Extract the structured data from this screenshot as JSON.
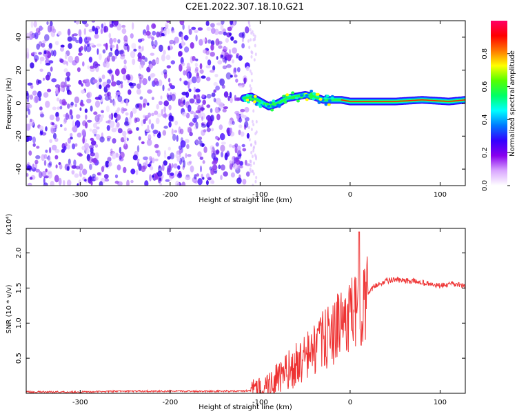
{
  "title": "C2E1.2022.307.18.10.G21",
  "chart_data": [
    {
      "type": "heatmap",
      "xlabel": "Height of straight line (km)",
      "ylabel": "Frequency (Hz)",
      "xlim": [
        -360,
        128
      ],
      "ylim": [
        -50,
        50
      ],
      "x_ticks": [
        -300,
        -200,
        -100,
        0,
        100
      ],
      "y_ticks": [
        -40,
        -20,
        0,
        20,
        40
      ],
      "noise_region_x": [
        -360,
        -113
      ],
      "signal_trace": [
        {
          "x": -118,
          "y": 3
        },
        {
          "x": -110,
          "y": 4
        },
        {
          "x": -100,
          "y": 1
        },
        {
          "x": -90,
          "y": -2
        },
        {
          "x": -80,
          "y": 0
        },
        {
          "x": -70,
          "y": 3
        },
        {
          "x": -60,
          "y": 4
        },
        {
          "x": -50,
          "y": 5
        },
        {
          "x": -40,
          "y": 4
        },
        {
          "x": -30,
          "y": 2
        },
        {
          "x": -20,
          "y": 2
        },
        {
          "x": -10,
          "y": 2
        },
        {
          "x": 0,
          "y": 1
        },
        {
          "x": 20,
          "y": 1
        },
        {
          "x": 50,
          "y": 1
        },
        {
          "x": 80,
          "y": 2
        },
        {
          "x": 110,
          "y": 1
        },
        {
          "x": 128,
          "y": 2
        }
      ],
      "colorbar": {
        "label": "Normalized spectral amplitude",
        "range": [
          0,
          1
        ],
        "ticks": [
          "0.0",
          "0.2",
          "0.4",
          "0.6",
          "0.8"
        ],
        "colors": [
          "#ffffff",
          "#d9a6ff",
          "#8800ee",
          "#3300ff",
          "#0077ff",
          "#00ffff",
          "#00ff66",
          "#55ff00",
          "#ffff00",
          "#ff7700",
          "#ff0000",
          "#ff0066"
        ]
      }
    },
    {
      "type": "line",
      "xlabel": "Height of straight line (km)",
      "ylabel": "SNR (10 * v/v)",
      "multiplier": "(x10⁴)",
      "xlim": [
        -360,
        128
      ],
      "ylim": [
        0,
        2.35
      ],
      "x_ticks": [
        -300,
        -200,
        -100,
        0,
        100
      ],
      "y_ticks": [
        "0.5",
        "1.0",
        "1.5",
        "2.0"
      ],
      "color": "#ee3333",
      "series": [
        {
          "x": [
            -360,
            -300,
            -250,
            -200,
            -150,
            -120,
            -110,
            -100,
            -90,
            -80,
            -70,
            -60,
            -50,
            -40,
            -30,
            -20,
            -10,
            -5,
            0,
            5,
            10,
            15,
            20,
            25,
            30,
            40,
            50,
            60,
            70,
            80,
            90,
            100,
            110,
            120,
            128
          ],
          "y": [
            0.02,
            0.02,
            0.03,
            0.03,
            0.03,
            0.03,
            0.04,
            0.06,
            0.12,
            0.2,
            0.3,
            0.4,
            0.5,
            0.62,
            0.75,
            0.85,
            1.0,
            1.05,
            1.1,
            1.15,
            1.2,
            1.3,
            1.4,
            1.5,
            1.55,
            1.6,
            1.62,
            1.6,
            1.6,
            1.58,
            1.55,
            1.53,
            1.55,
            1.55,
            1.52
          ]
        }
      ]
    }
  ]
}
